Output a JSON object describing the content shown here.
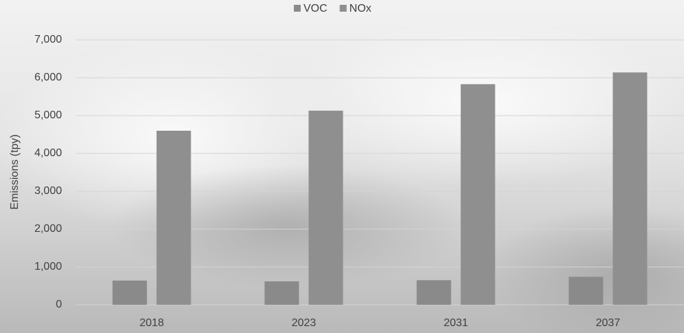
{
  "chart_data": {
    "type": "bar",
    "y_label": "Emissions (tpy)",
    "categories": [
      "2018",
      "2023",
      "2031",
      "2037"
    ],
    "series": [
      {
        "name": "VOC",
        "color": "#8a8a8a",
        "values": [
          640,
          620,
          650,
          740
        ]
      },
      {
        "name": "NOx",
        "color": "#8f8f8f",
        "values": [
          4600,
          5130,
          5830,
          6140
        ]
      }
    ],
    "ylim": [
      0,
      7000
    ],
    "yticks": [
      0,
      {
        "value": 1000,
        "label": "1,000"
      },
      {
        "value": 2000,
        "label": "2,000"
      },
      {
        "value": 3000,
        "label": "3,000"
      },
      {
        "value": 4000,
        "label": "4,000"
      },
      {
        "value": 5000,
        "label": "5,000"
      },
      {
        "value": 6000,
        "label": "6,000"
      },
      {
        "value": 7000,
        "label": "7,000"
      }
    ],
    "grid": true,
    "legend": "top"
  }
}
